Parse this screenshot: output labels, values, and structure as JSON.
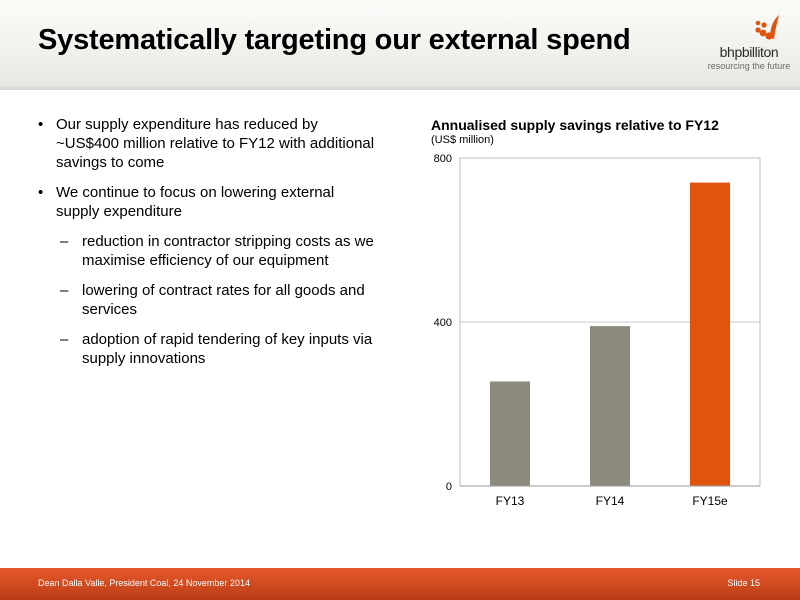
{
  "header": {
    "title": "Systematically targeting our external spend",
    "logo_name": "bhpbilliton",
    "logo_tagline": "resourcing the future"
  },
  "bullets": [
    {
      "text": "Our supply expenditure has reduced by ~US$400 million relative to FY12 with additional savings to come",
      "subitems": []
    },
    {
      "text": "We continue to focus on lowering external supply expenditure",
      "subitems": [
        "reduction in contractor stripping costs as we maximise efficiency of our equipment",
        "lowering of contract rates for all goods and services",
        "adoption of rapid tendering of key inputs via supply innovations"
      ]
    }
  ],
  "chart_data": {
    "type": "bar",
    "title": "Annualised supply savings relative to FY12",
    "subtitle": "(US$ million)",
    "xlabel": "",
    "ylabel": "",
    "categories": [
      "FY13",
      "FY14",
      "FY15e"
    ],
    "values": [
      255,
      390,
      740
    ],
    "colors": [
      "#8c8b7d",
      "#8c8b7d",
      "#e0540e"
    ],
    "ylim": [
      0,
      800
    ],
    "yticks": [
      0,
      400,
      800
    ],
    "grid": true,
    "legend": "none"
  },
  "footer": {
    "presenter": "Dean Dalla Valle, President Coal, 24 November 2014",
    "slide": "Slide 15"
  },
  "colors": {
    "accent_orange": "#e0540e",
    "bar_grey": "#8c8b7d",
    "footer_orange": "#cf4a1f"
  }
}
